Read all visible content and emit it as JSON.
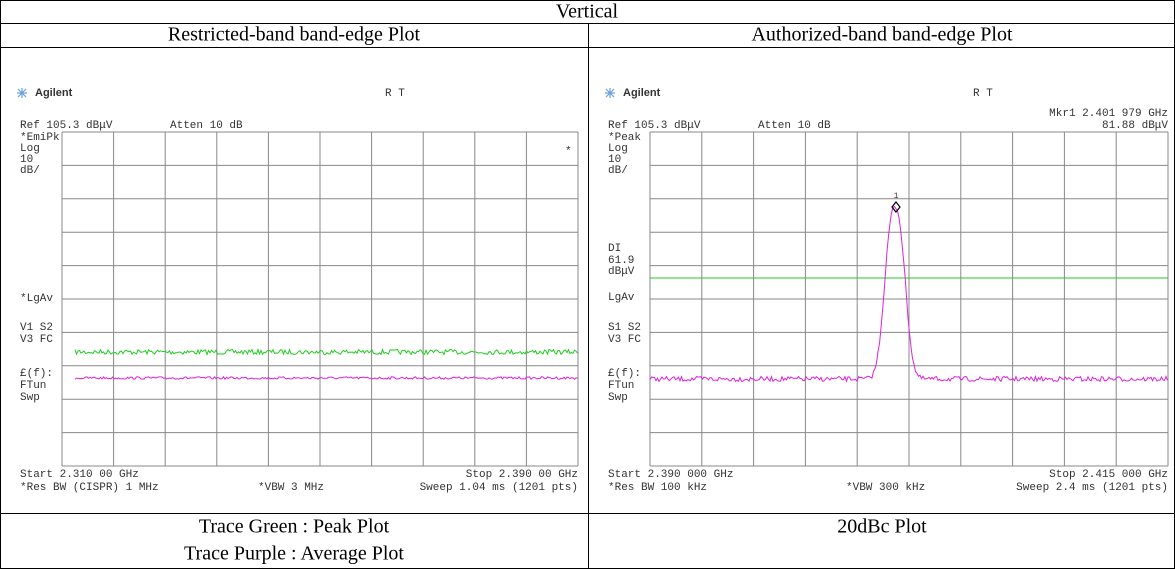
{
  "table": {
    "title": "Vertical",
    "columns": [
      {
        "header": "Restricted-band band-edge Plot",
        "screen": {
          "brand": "Agilent",
          "status": "R T",
          "ref": "Ref 105.3 dBμV",
          "atten": "Atten 10 dB",
          "labels": [
            "*EmiPk",
            "Log",
            "10",
            "dB/",
            "*LgAv",
            "V1 S2",
            "V3 FC",
            "£(f):",
            "FTun",
            "Swp"
          ],
          "symbol": "*",
          "start": "Start 2.310 00 GHz",
          "stop": "Stop 2.390 00 GHz",
          "rbw": "*Res BW (CISPR) 1 MHz",
          "vbw": "*VBW 3 MHz",
          "sweep": "Sweep 1.04 ms (1201 pts)"
        },
        "caption": [
          "Trace Green : Peak Plot",
          "Trace Purple : Average Plot"
        ]
      },
      {
        "header": "Authorized-band band-edge Plot",
        "screen": {
          "brand": "Agilent",
          "status": "R T",
          "marker": "Mkr1 2.401 979 GHz",
          "marker_value": "81.88 dBμV",
          "ref": "Ref 105.3 dBμV",
          "atten": "Atten 10 dB",
          "labels": [
            "*Peak",
            "Log",
            "10",
            "dB/",
            "DI",
            "61.9",
            "dBμV",
            "LgAv",
            "S1 S2",
            "V3 FC",
            "£(f):",
            "FTun",
            "Swp"
          ],
          "symbol": "1",
          "start": "Start 2.390 000 GHz",
          "stop": "Stop 2.415 000 GHz",
          "rbw": "*Res BW 100 kHz",
          "vbw": "*VBW 300 kHz",
          "sweep": "Sweep 2.4 ms (1201 pts)"
        },
        "caption": [
          "20dBc Plot"
        ]
      }
    ]
  }
}
